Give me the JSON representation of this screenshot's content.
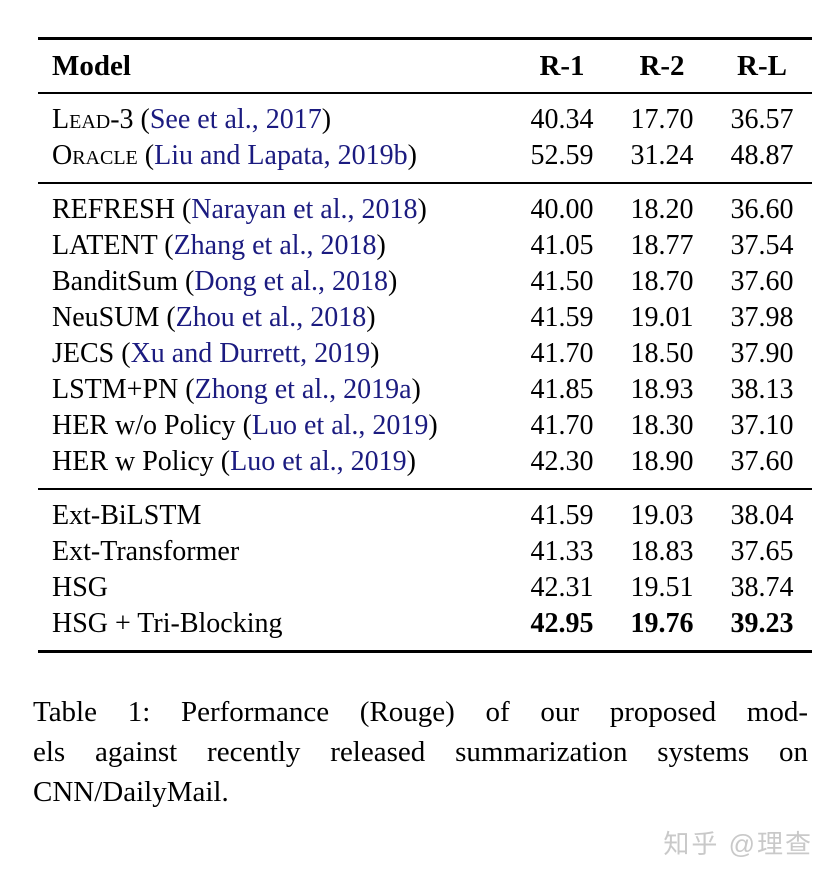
{
  "colors": {
    "citation_blue": "#1b1b80",
    "text_black": "#000000",
    "watermark_gray": "#c9c9c9",
    "background": "#ffffff"
  },
  "table": {
    "citation_open": " (",
    "citation_close": ")",
    "headers": {
      "model": "Model",
      "r1": "R-1",
      "r2": "R-2",
      "rl": "R-L"
    },
    "groups": [
      {
        "rows": [
          {
            "name": "Lead-3",
            "smallcaps": true,
            "citation": "See et al., 2017",
            "r1": "40.34",
            "r2": "17.70",
            "rl": "36.57",
            "bold": false
          },
          {
            "name": "Oracle",
            "smallcaps": true,
            "citation": "Liu and Lapata, 2019b",
            "r1": "52.59",
            "r2": "31.24",
            "rl": "48.87",
            "bold": false
          }
        ]
      },
      {
        "rows": [
          {
            "name": "REFRESH",
            "smallcaps": false,
            "citation": "Narayan et al., 2018",
            "r1": "40.00",
            "r2": "18.20",
            "rl": "36.60",
            "bold": false
          },
          {
            "name": "LATENT",
            "smallcaps": false,
            "citation": "Zhang et al., 2018",
            "r1": "41.05",
            "r2": "18.77",
            "rl": "37.54",
            "bold": false
          },
          {
            "name": "BanditSum",
            "smallcaps": false,
            "citation": "Dong et al., 2018",
            "r1": "41.50",
            "r2": "18.70",
            "rl": "37.60",
            "bold": false
          },
          {
            "name": "NeuSUM",
            "smallcaps": false,
            "citation": "Zhou et al., 2018",
            "r1": "41.59",
            "r2": "19.01",
            "rl": "37.98",
            "bold": false
          },
          {
            "name": "JECS",
            "smallcaps": false,
            "citation": "Xu and Durrett, 2019",
            "r1": "41.70",
            "r2": "18.50",
            "rl": "37.90",
            "bold": false
          },
          {
            "name": "LSTM+PN",
            "smallcaps": false,
            "citation": "Zhong et al., 2019a",
            "r1": "41.85",
            "r2": "18.93",
            "rl": "38.13",
            "bold": false
          },
          {
            "name": "HER w/o Policy",
            "smallcaps": false,
            "citation": "Luo et al., 2019",
            "r1": "41.70",
            "r2": "18.30",
            "rl": "37.10",
            "bold": false
          },
          {
            "name": "HER w Policy",
            "smallcaps": false,
            "citation": "Luo et al., 2019",
            "r1": "42.30",
            "r2": "18.90",
            "rl": "37.60",
            "bold": false
          }
        ]
      },
      {
        "rows": [
          {
            "name": "Ext-BiLSTM",
            "smallcaps": false,
            "citation": null,
            "r1": "41.59",
            "r2": "19.03",
            "rl": "38.04",
            "bold": false
          },
          {
            "name": "Ext-Transformer",
            "smallcaps": false,
            "citation": null,
            "r1": "41.33",
            "r2": "18.83",
            "rl": "37.65",
            "bold": false
          },
          {
            "name": "HSG",
            "smallcaps": false,
            "citation": null,
            "r1": "42.31",
            "r2": "19.51",
            "rl": "38.74",
            "bold": false
          },
          {
            "name": "HSG + Tri-Blocking",
            "smallcaps": false,
            "citation": null,
            "r1": "42.95",
            "r2": "19.76",
            "rl": "39.23",
            "bold": true
          }
        ]
      }
    ]
  },
  "caption": {
    "lines": [
      "Table 1: Performance (Rouge) of our proposed mod-",
      "els against recently released summarization systems on",
      "CNN/DailyMail."
    ],
    "full_text": "Table 1: Performance (Rouge) of our proposed models against recently released summarization systems on CNN/DailyMail."
  },
  "watermark": {
    "text": "知乎 @理查"
  }
}
